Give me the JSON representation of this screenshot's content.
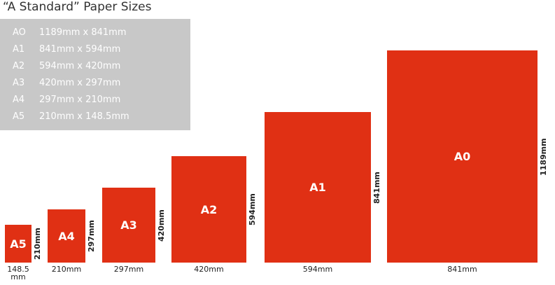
{
  "header": {
    "title": "“A Standard” Paper Sizes"
  },
  "table": {
    "rows": [
      [
        "AO",
        "1189mm x 841mm"
      ],
      [
        "A1",
        "841mm x 594mm"
      ],
      [
        "A2",
        "594mm x 420mm"
      ],
      [
        "A3",
        "420mm x 297mm"
      ],
      [
        "A4",
        "297mm x 210mm"
      ],
      [
        "A5",
        "210mm x 148.5mm"
      ]
    ]
  },
  "sheets": [
    {
      "label": "A5",
      "width_label": "148.5 mm",
      "height_label": "210mm"
    },
    {
      "label": "A4",
      "width_label": "210mm",
      "height_label": "297mm"
    },
    {
      "label": "A3",
      "width_label": "297mm",
      "height_label": "420mm"
    },
    {
      "label": "A2",
      "width_label": "420mm",
      "height_label": "594mm"
    },
    {
      "label": "A1",
      "width_label": "594mm",
      "height_label": "841mm"
    },
    {
      "label": "A0",
      "width_label": "841mm",
      "height_label": "1189mm"
    }
  ]
}
